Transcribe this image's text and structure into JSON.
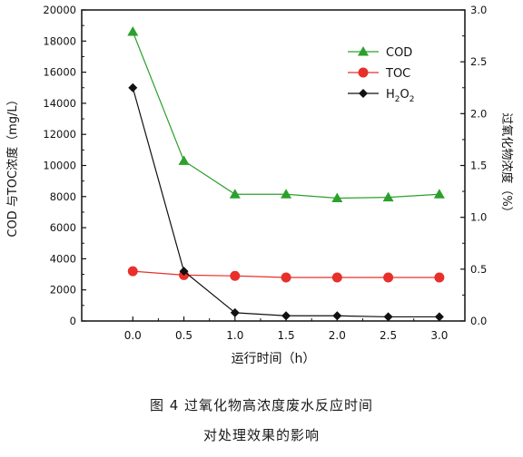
{
  "chart_data": {
    "type": "line",
    "x": [
      0.0,
      0.5,
      1.0,
      1.5,
      2.0,
      2.5,
      3.0
    ],
    "x_tick_labels": [
      "0.0",
      "0.5",
      "1.0",
      "1.5",
      "2.0",
      "2.5",
      "3.0"
    ],
    "xlim": [
      -0.5,
      3.25
    ],
    "xlabel": "运行时间（h）",
    "ylabel_left": "COD 与TOC浓度（mg/L）",
    "ylim_left": [
      0,
      20000
    ],
    "y_ticks_left": [
      0,
      2000,
      4000,
      6000,
      8000,
      10000,
      12000,
      14000,
      16000,
      18000,
      20000
    ],
    "ylabel_right": "过氧化物浓度（%）",
    "ylim_right": [
      0,
      3.0
    ],
    "y_ticks_right": [
      "0.0",
      "0.5",
      "1.0",
      "1.5",
      "2.0",
      "2.5",
      "3.0"
    ],
    "grid": false,
    "legend_position": "top-right",
    "series": [
      {
        "name": "COD",
        "axis": "left",
        "marker": "triangle",
        "color": "#2ca02c",
        "values": [
          18600,
          10300,
          8150,
          8150,
          7900,
          7950,
          8150
        ]
      },
      {
        "name": "TOC",
        "axis": "left",
        "marker": "circle",
        "color": "#e8302a",
        "values": [
          3200,
          2950,
          2900,
          2800,
          2800,
          2800,
          2800
        ]
      },
      {
        "name": "H2O2",
        "label_main": "H",
        "label_sub1": "2",
        "label_mid": "O",
        "label_sub2": "2",
        "axis": "right",
        "marker": "diamond",
        "color": "#111111",
        "values": [
          2.25,
          0.48,
          0.08,
          0.05,
          0.05,
          0.04,
          0.04
        ]
      }
    ]
  },
  "caption": {
    "line1": "图 4  过氧化物高浓度废水反应时间",
    "line2": "对处理效果的影响"
  }
}
